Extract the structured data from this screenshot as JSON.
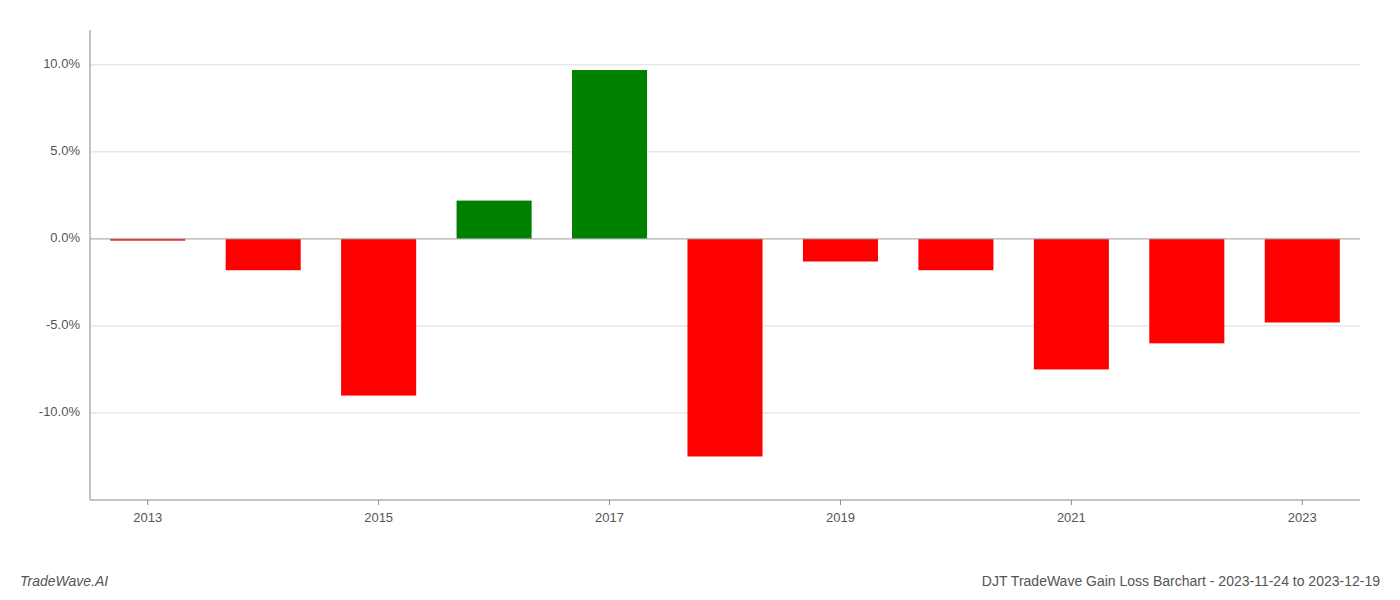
{
  "chart_data": {
    "type": "bar",
    "title": "DJT TradeWave Gain Loss Barchart - 2023-11-24 to 2023-12-19",
    "annotations": [
      "TradeWave.AI"
    ],
    "categories": [
      "2013",
      null,
      "2015",
      null,
      "2017",
      null,
      "2019",
      null,
      "2021",
      null,
      "2023"
    ],
    "values": [
      -0.1,
      -1.8,
      -9.0,
      2.2,
      9.7,
      -12.5,
      -1.3,
      -1.8,
      -7.5,
      -6.0,
      -4.8
    ],
    "colors": [
      "#ff0000",
      "#ff0000",
      "#ff0000",
      "#008000",
      "#008000",
      "#ff0000",
      "#ff0000",
      "#ff0000",
      "#ff0000",
      "#ff0000",
      "#ff0000"
    ],
    "ylim": [
      -15,
      12
    ],
    "yticks": [
      {
        "value": -10.0,
        "label": "-10.0%"
      },
      {
        "value": -5.0,
        "label": "-5.0%"
      },
      {
        "value": 0.0,
        "label": "0.0%"
      },
      {
        "value": 5.0,
        "label": "5.0%"
      },
      {
        "value": 10.0,
        "label": "10.0%"
      }
    ],
    "grid": true
  }
}
